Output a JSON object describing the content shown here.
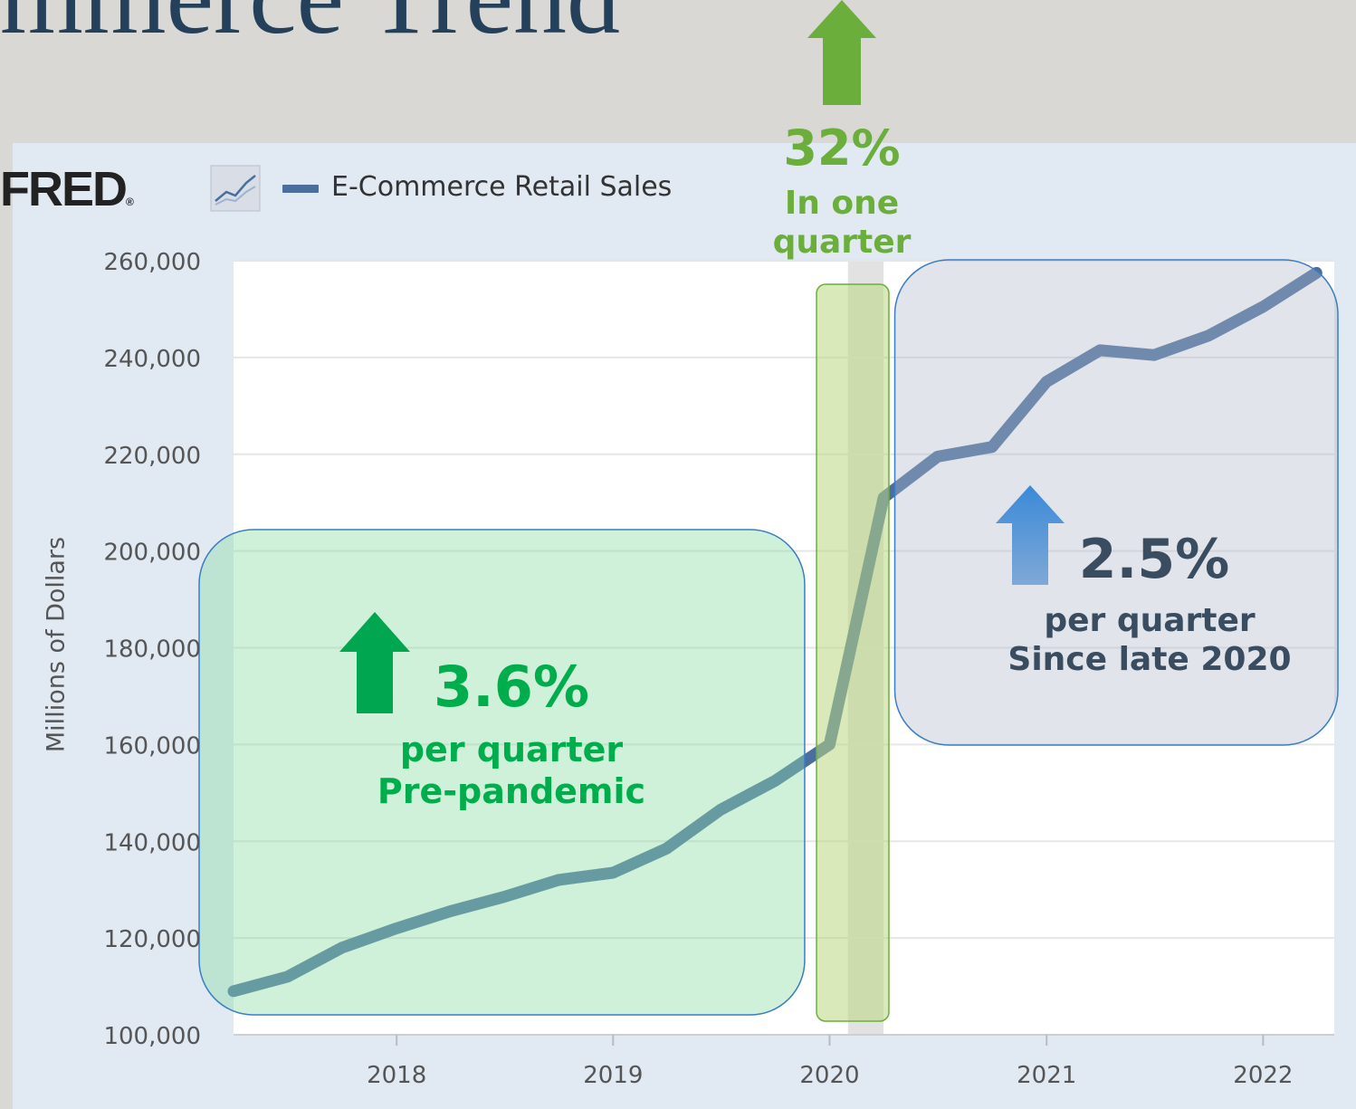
{
  "slide": {
    "title": "mmerce Trend"
  },
  "header": {
    "logo": "FRED",
    "logo_mark": "®",
    "legend_label": "E-Commerce Retail Sales",
    "legend_icon": "line-chart-icon"
  },
  "colors": {
    "series": "#4a6f9f",
    "background": "#e1e9f3",
    "plot": "#ffffff",
    "recession": "#e2e2e2",
    "green_annotation": "#00ad4c",
    "light_green_annotation": "#6cae3c",
    "gray_annotation": "#3a4c60"
  },
  "annotations": {
    "pre": {
      "value": "3.6%",
      "line1": "per quarter",
      "line2": "Pre-pandemic"
    },
    "spike": {
      "value": "32%",
      "line1": "In one",
      "line2": "quarter"
    },
    "post": {
      "value": "2.5%",
      "line1": "per quarter",
      "line2": "Since late 2020"
    }
  },
  "chart_data": {
    "type": "line",
    "ylabel": "Millions of Dollars",
    "ylim": [
      100000,
      260000
    ],
    "y_ticks": [
      100000,
      120000,
      140000,
      160000,
      180000,
      200000,
      220000,
      240000,
      260000
    ],
    "y_tick_labels": [
      "100,000",
      "120,000",
      "140,000",
      "160,000",
      "180,000",
      "200,000",
      "220,000",
      "240,000",
      "260,000"
    ],
    "x_ticks": [
      "2018",
      "2019",
      "2020",
      "2021",
      "2022"
    ],
    "xlim": [
      "2017-04-01",
      "2022-05-01"
    ],
    "grid": true,
    "legend_position": "top-left",
    "series": [
      {
        "name": "E-Commerce Retail Sales",
        "x": [
          "2017-04-01",
          "2017-07-01",
          "2017-10-01",
          "2018-01-01",
          "2018-04-01",
          "2018-07-01",
          "2018-10-01",
          "2019-01-01",
          "2019-04-01",
          "2019-07-01",
          "2019-10-01",
          "2020-01-01",
          "2020-04-01",
          "2020-07-01",
          "2020-10-01",
          "2021-01-01",
          "2021-04-01",
          "2021-07-01",
          "2021-10-01",
          "2022-01-01",
          "2022-04-01"
        ],
        "values": [
          109000,
          112000,
          118000,
          122000,
          125500,
          128500,
          132000,
          133500,
          138500,
          146500,
          152500,
          160000,
          211000,
          219500,
          221500,
          235000,
          241500,
          240500,
          244500,
          250500,
          257500
        ]
      }
    ],
    "shaded_regions": [
      {
        "from": "2020-02-01",
        "to": "2020-04-01",
        "label": "recession"
      }
    ]
  }
}
